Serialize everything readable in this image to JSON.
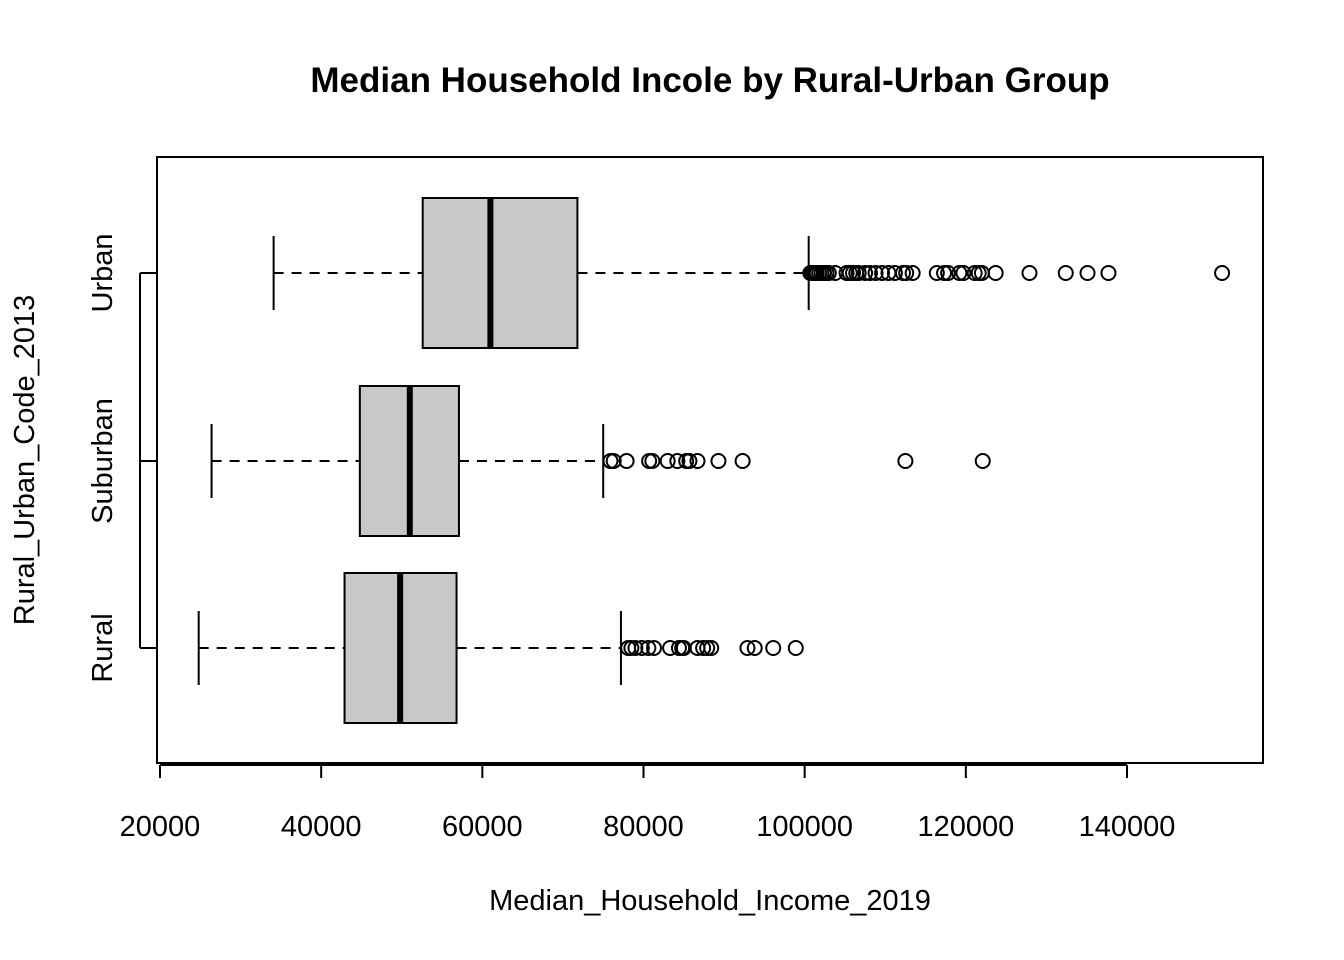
{
  "chart_data": {
    "type": "boxplot",
    "orientation": "horizontal",
    "title": "Median Household Incole by Rural-Urban Group",
    "xlabel": "Median_Household_Income_2019",
    "ylabel": "Rural_Urban_Code_2013",
    "xlim": [
      20000,
      155000
    ],
    "x_ticks": [
      20000,
      40000,
      60000,
      80000,
      100000,
      120000,
      140000
    ],
    "grid": false,
    "legend": "none",
    "box_fill": "#c8c8c8",
    "line_color": "#000000",
    "groups": [
      {
        "name": "Rural",
        "whisker_low": 24800,
        "q1": 42900,
        "median": 49800,
        "q3": 56800,
        "whisker_high": 77200,
        "outliers": [
          78100,
          78500,
          79000,
          79800,
          80600,
          81300,
          83300,
          84400,
          84800,
          85000,
          86700,
          87400,
          87900,
          88400,
          92900,
          93800,
          96100,
          98900
        ]
      },
      {
        "name": "Suburban",
        "whisker_low": 26400,
        "q1": 44800,
        "median": 51000,
        "q3": 57100,
        "whisker_high": 75000,
        "outliers": [
          75900,
          76300,
          77900,
          80700,
          81100,
          83000,
          84200,
          85300,
          85700,
          86700,
          89300,
          92300,
          112500,
          122100
        ]
      },
      {
        "name": "Urban",
        "whisker_low": 34100,
        "q1": 52600,
        "median": 61000,
        "q3": 71800,
        "whisker_high": 100500,
        "outliers": [
          100700,
          100900,
          101100,
          101300,
          101500,
          101800,
          102100,
          102400,
          102700,
          103000,
          103800,
          105200,
          105600,
          106000,
          106400,
          106700,
          107500,
          108100,
          108800,
          109600,
          110400,
          111200,
          112200,
          112600,
          113400,
          116400,
          117300,
          117800,
          119200,
          119700,
          121100,
          121600,
          122000,
          123700,
          127900,
          132400,
          135100,
          137700,
          151800
        ]
      }
    ]
  }
}
